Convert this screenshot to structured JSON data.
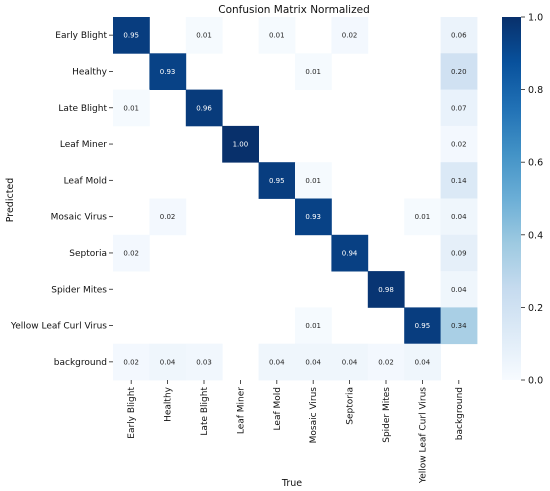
{
  "chart_data": {
    "type": "heatmap",
    "title": "Confusion Matrix Normalized",
    "xlabel": "True",
    "ylabel": "Predicted",
    "rows": [
      "Early Blight",
      "Healthy",
      "Late Blight",
      "Leaf Miner",
      "Leaf Mold",
      "Mosaic Virus",
      "Septoria",
      "Spider Mites",
      "Yellow Leaf Curl Virus",
      "background"
    ],
    "columns": [
      "Early Blight",
      "Healthy",
      "Late Blight",
      "Leaf Miner",
      "Leaf Mold",
      "Mosaic Virus",
      "Septoria",
      "Spider Mites",
      "Yellow Leaf Curl Virus",
      "background"
    ],
    "values": [
      [
        0.95,
        null,
        0.01,
        null,
        0.01,
        null,
        0.02,
        null,
        null,
        0.06
      ],
      [
        null,
        0.93,
        null,
        null,
        null,
        0.01,
        null,
        null,
        null,
        0.2
      ],
      [
        0.01,
        null,
        0.96,
        null,
        null,
        null,
        null,
        null,
        null,
        0.07
      ],
      [
        null,
        null,
        null,
        1.0,
        null,
        null,
        null,
        null,
        null,
        0.02
      ],
      [
        null,
        null,
        null,
        null,
        0.95,
        0.01,
        null,
        null,
        null,
        0.14
      ],
      [
        null,
        0.02,
        null,
        null,
        null,
        0.93,
        null,
        null,
        0.01,
        0.04
      ],
      [
        0.02,
        null,
        null,
        null,
        null,
        null,
        0.94,
        null,
        null,
        0.09
      ],
      [
        null,
        null,
        null,
        null,
        null,
        null,
        null,
        0.98,
        null,
        0.04
      ],
      [
        null,
        null,
        null,
        null,
        null,
        0.01,
        null,
        null,
        0.95,
        0.34
      ],
      [
        0.02,
        0.04,
        0.03,
        null,
        0.04,
        0.04,
        0.04,
        0.02,
        0.04,
        null
      ]
    ],
    "colorbar": {
      "range": [
        0.0,
        1.0
      ],
      "ticks": [
        "0.0",
        "0.2",
        "0.4",
        "0.6",
        "0.8",
        "1.0"
      ],
      "colormap": "Blues"
    }
  }
}
